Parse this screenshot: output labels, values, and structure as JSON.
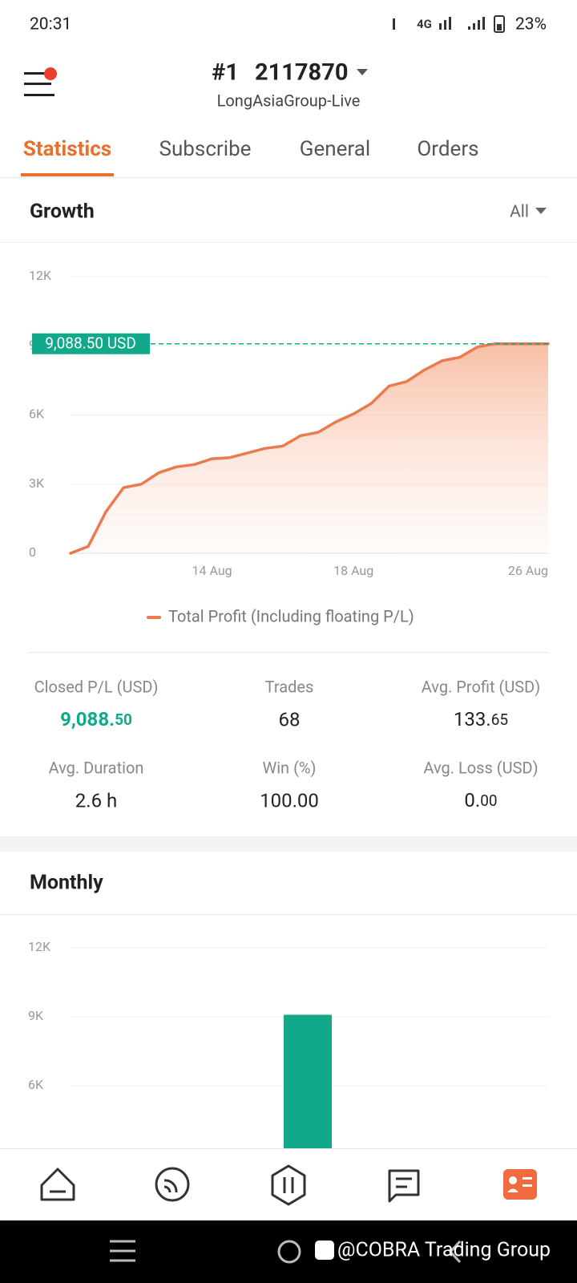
{
  "status_bar": {
    "time": "20:31",
    "network": "4G",
    "battery": "23%"
  },
  "header": {
    "account_prefix": "#1",
    "account_number": "2117870",
    "server": "LongAsiaGroup-Live"
  },
  "tabs": {
    "items": [
      "Statistics",
      "Subscribe",
      "General",
      "Orders"
    ],
    "active": 0
  },
  "growth": {
    "title": "Growth",
    "filter": "All",
    "chart_data": {
      "type": "area",
      "categories": [
        null,
        null,
        null,
        null,
        null,
        null,
        null,
        null,
        "14 Aug",
        null,
        null,
        null,
        null,
        null,
        null,
        null,
        "18 Aug",
        null,
        null,
        null,
        null,
        null,
        null,
        null,
        null,
        null,
        "26 Aug",
        null
      ],
      "series": [
        {
          "name": "Total Profit (Including floating P/L)",
          "color": "#ea7b4f",
          "values": [
            0,
            300,
            1800,
            2850,
            3000,
            3500,
            3750,
            3850,
            4100,
            4150,
            4350,
            4550,
            4650,
            5100,
            5250,
            5700,
            6050,
            6500,
            7250,
            7450,
            7950,
            8350,
            8500,
            8950,
            9088.5,
            9088.5,
            9088.5,
            9088.5
          ]
        }
      ],
      "ylim": [
        0,
        12000
      ],
      "yticks": [
        {
          "value": 0,
          "label": "0"
        },
        {
          "value": 3000,
          "label": "3K"
        },
        {
          "value": 6000,
          "label": "6K"
        },
        {
          "value": 9000,
          "label": "9K"
        },
        {
          "value": 12000,
          "label": "12K"
        }
      ],
      "grid": true,
      "annotation": {
        "value": 9088.5,
        "label": "9,088.50 USD",
        "color": "#12a88a"
      }
    }
  },
  "stats": [
    {
      "label": "Closed P/L (USD)",
      "value": "9,088.50",
      "color": "#12a88a",
      "small_decimals": true
    },
    {
      "label": "Trades",
      "value": "68"
    },
    {
      "label": "Avg. Profit (USD)",
      "value": "133.65",
      "small_decimals": true
    },
    {
      "label": "Avg. Duration",
      "value": "2.6 h"
    },
    {
      "label": "Win (%)",
      "value": "100.00"
    },
    {
      "label": "Avg. Loss (USD)",
      "value": "0.00",
      "small_decimals": true
    }
  ],
  "monthly": {
    "title": "Monthly",
    "chart_data": {
      "type": "bar",
      "categories": [
        null
      ],
      "values": [
        9088.5
      ],
      "color": "#12a88a",
      "ylim": [
        0,
        12000
      ],
      "yticks": [
        {
          "value": 6000,
          "label": "6K"
        },
        {
          "value": 9000,
          "label": "9K"
        },
        {
          "value": 12000,
          "label": "12K"
        }
      ],
      "grid": true
    }
  },
  "watermark": "@COBRA Trading Group"
}
